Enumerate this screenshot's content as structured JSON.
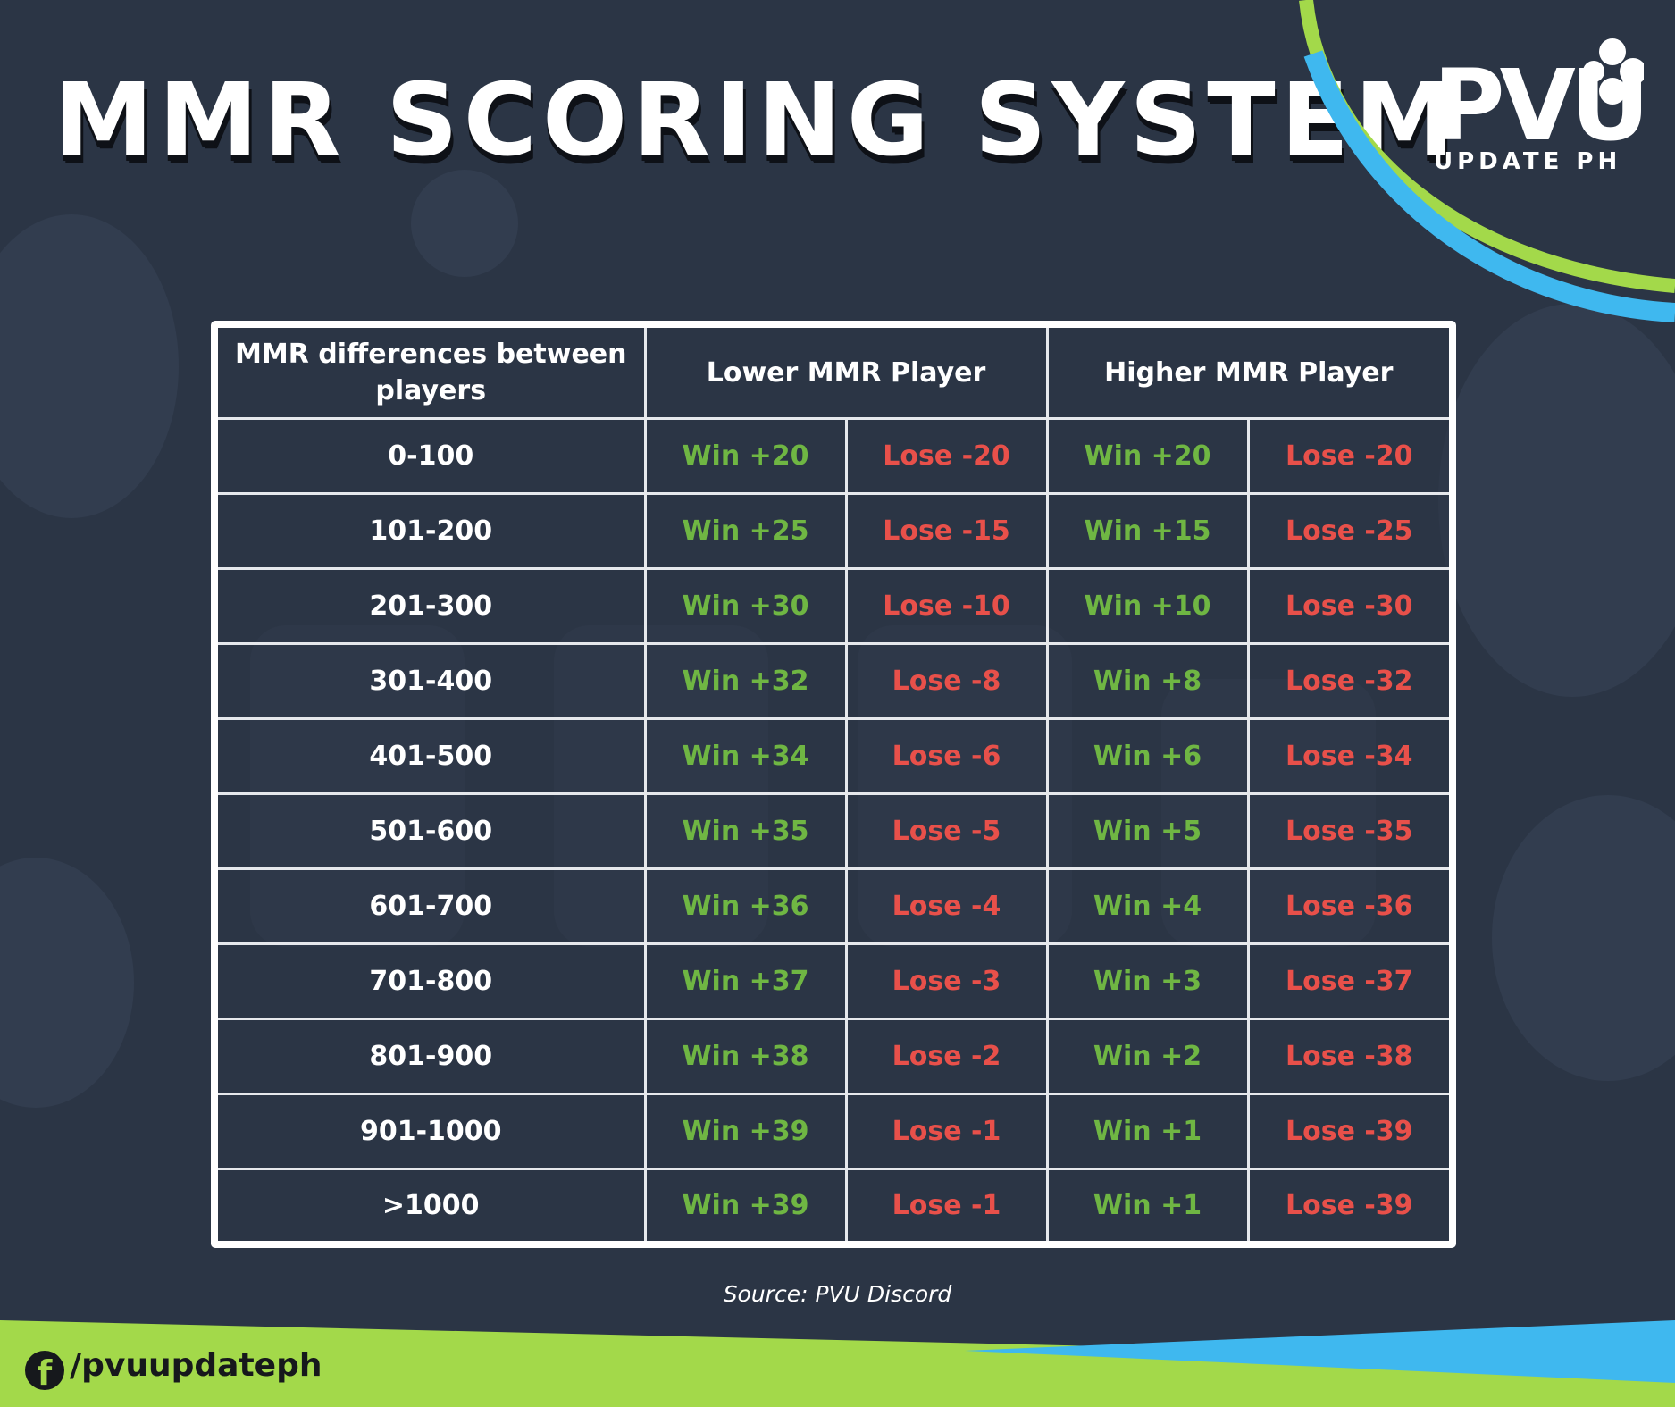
{
  "title": "MMR SCORING SYSTEM",
  "logo": {
    "mark": "PVU",
    "subtitle": "UPDATE PH"
  },
  "table": {
    "headers": [
      "MMR differences between players",
      "Lower MMR Player",
      "Higher MMR Player"
    ],
    "rows": [
      {
        "range": "0-100",
        "lower_win": "Win +20",
        "lower_lose": "Lose -20",
        "higher_win": "Win +20",
        "higher_lose": "Lose -20"
      },
      {
        "range": "101-200",
        "lower_win": "Win +25",
        "lower_lose": "Lose -15",
        "higher_win": "Win +15",
        "higher_lose": "Lose -25"
      },
      {
        "range": "201-300",
        "lower_win": "Win +30",
        "lower_lose": "Lose -10",
        "higher_win": "Win +10",
        "higher_lose": "Lose -30"
      },
      {
        "range": "301-400",
        "lower_win": "Win +32",
        "lower_lose": "Lose -8",
        "higher_win": "Win +8",
        "higher_lose": "Lose -32"
      },
      {
        "range": "401-500",
        "lower_win": "Win +34",
        "lower_lose": "Lose -6",
        "higher_win": "Win +6",
        "higher_lose": "Lose -34"
      },
      {
        "range": "501-600",
        "lower_win": "Win +35",
        "lower_lose": "Lose -5",
        "higher_win": "Win +5",
        "higher_lose": "Lose -35"
      },
      {
        "range": "601-700",
        "lower_win": "Win +36",
        "lower_lose": "Lose -4",
        "higher_win": "Win +4",
        "higher_lose": "Lose -36"
      },
      {
        "range": "701-800",
        "lower_win": "Win +37",
        "lower_lose": "Lose -3",
        "higher_win": "Win +3",
        "higher_lose": "Lose -37"
      },
      {
        "range": "801-900",
        "lower_win": "Win +38",
        "lower_lose": "Lose -2",
        "higher_win": "Win +2",
        "higher_lose": "Lose -38"
      },
      {
        "range": "901-1000",
        "lower_win": "Win +39",
        "lower_lose": "Lose -1",
        "higher_win": "Win +1",
        "higher_lose": "Lose -39"
      },
      {
        "range": ">1000",
        "lower_win": "Win +39",
        "lower_lose": "Lose -1",
        "higher_win": "Win +1",
        "higher_lose": "Lose -39"
      }
    ]
  },
  "source": "Source: PVU Discord",
  "footer": {
    "icon": "facebook-icon",
    "handle": "/pvuupdateph"
  },
  "colors": {
    "background": "#2b3545",
    "win": "#6fb643",
    "lose": "#e8504a",
    "accent_green": "#a3d94a",
    "accent_blue": "#3fb8ef"
  },
  "watermark_icons": [
    "plant-character-silhouette",
    "bird-character-silhouette",
    "pvu-logo-watermark"
  ]
}
